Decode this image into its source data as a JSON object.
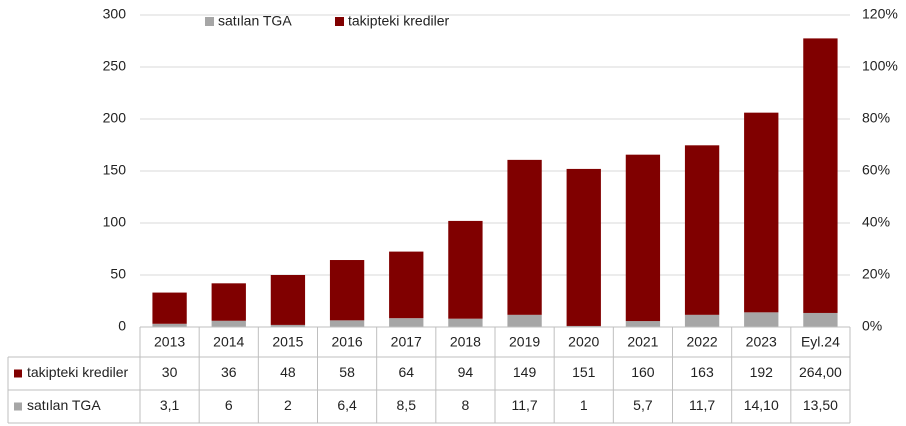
{
  "chart_data": {
    "type": "bar",
    "stacked": true,
    "categories": [
      "2013",
      "2014",
      "2015",
      "2016",
      "2017",
      "2018",
      "2019",
      "2020",
      "2021",
      "2022",
      "2023",
      "Eyl.24"
    ],
    "series": [
      {
        "name": "satılan TGA",
        "color": "#a6a6a6",
        "values": [
          3.1,
          6,
          2,
          6.4,
          8.5,
          8,
          11.7,
          1,
          5.7,
          11.7,
          14.1,
          13.5
        ],
        "value_labels": [
          "3,1",
          "6",
          "2",
          "6,4",
          "8,5",
          "8",
          "11,7",
          "1",
          "5,7",
          "11,7",
          "14,10",
          "13,50"
        ]
      },
      {
        "name": "takipteki krediler",
        "color": "#800000",
        "values": [
          30,
          36,
          48,
          58,
          64,
          94,
          149,
          151,
          160,
          163,
          192,
          264
        ],
        "value_labels": [
          "30",
          "36",
          "48",
          "58",
          "64",
          "94",
          "149",
          "151",
          "160",
          "163",
          "192",
          "264,00"
        ]
      }
    ],
    "ylim": [
      0,
      300
    ],
    "yticks": [
      0,
      50,
      100,
      150,
      200,
      250,
      300
    ],
    "y2lim": [
      0,
      120
    ],
    "y2ticks": [
      {
        "value": 0,
        "label": "0%"
      },
      {
        "value": 20,
        "label": "20%"
      },
      {
        "value": 40,
        "label": "40%"
      },
      {
        "value": 60,
        "label": "60%"
      },
      {
        "value": 80,
        "label": "80%"
      },
      {
        "value": 100,
        "label": "100%"
      },
      {
        "value": 120,
        "label": "120%"
      }
    ],
    "grid": true,
    "legend": "top"
  }
}
